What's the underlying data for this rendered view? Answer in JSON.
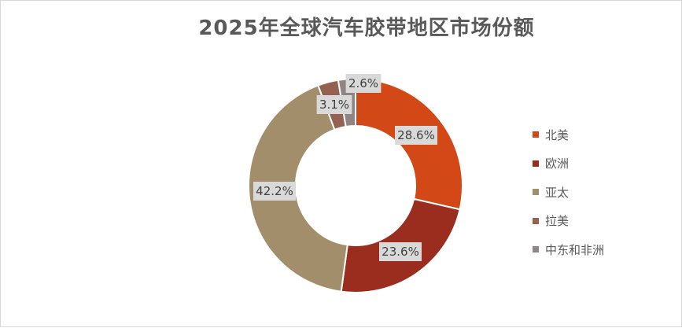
{
  "chart_data": {
    "type": "pie",
    "title": "2025年全球汽车胶带地区市场份额",
    "categories": [
      "北美",
      "欧洲",
      "亚太",
      "拉美",
      "中东和非洲"
    ],
    "values": [
      28.6,
      23.6,
      42.2,
      3.1,
      2.6
    ],
    "value_labels": [
      "28.6%",
      "23.6%",
      "42.2%",
      "3.1%",
      "2.6%"
    ],
    "colors": [
      "#d34817",
      "#9b2d1f",
      "#a28e6a",
      "#956251",
      "#918485"
    ],
    "donut": true,
    "legend_position": "right"
  }
}
